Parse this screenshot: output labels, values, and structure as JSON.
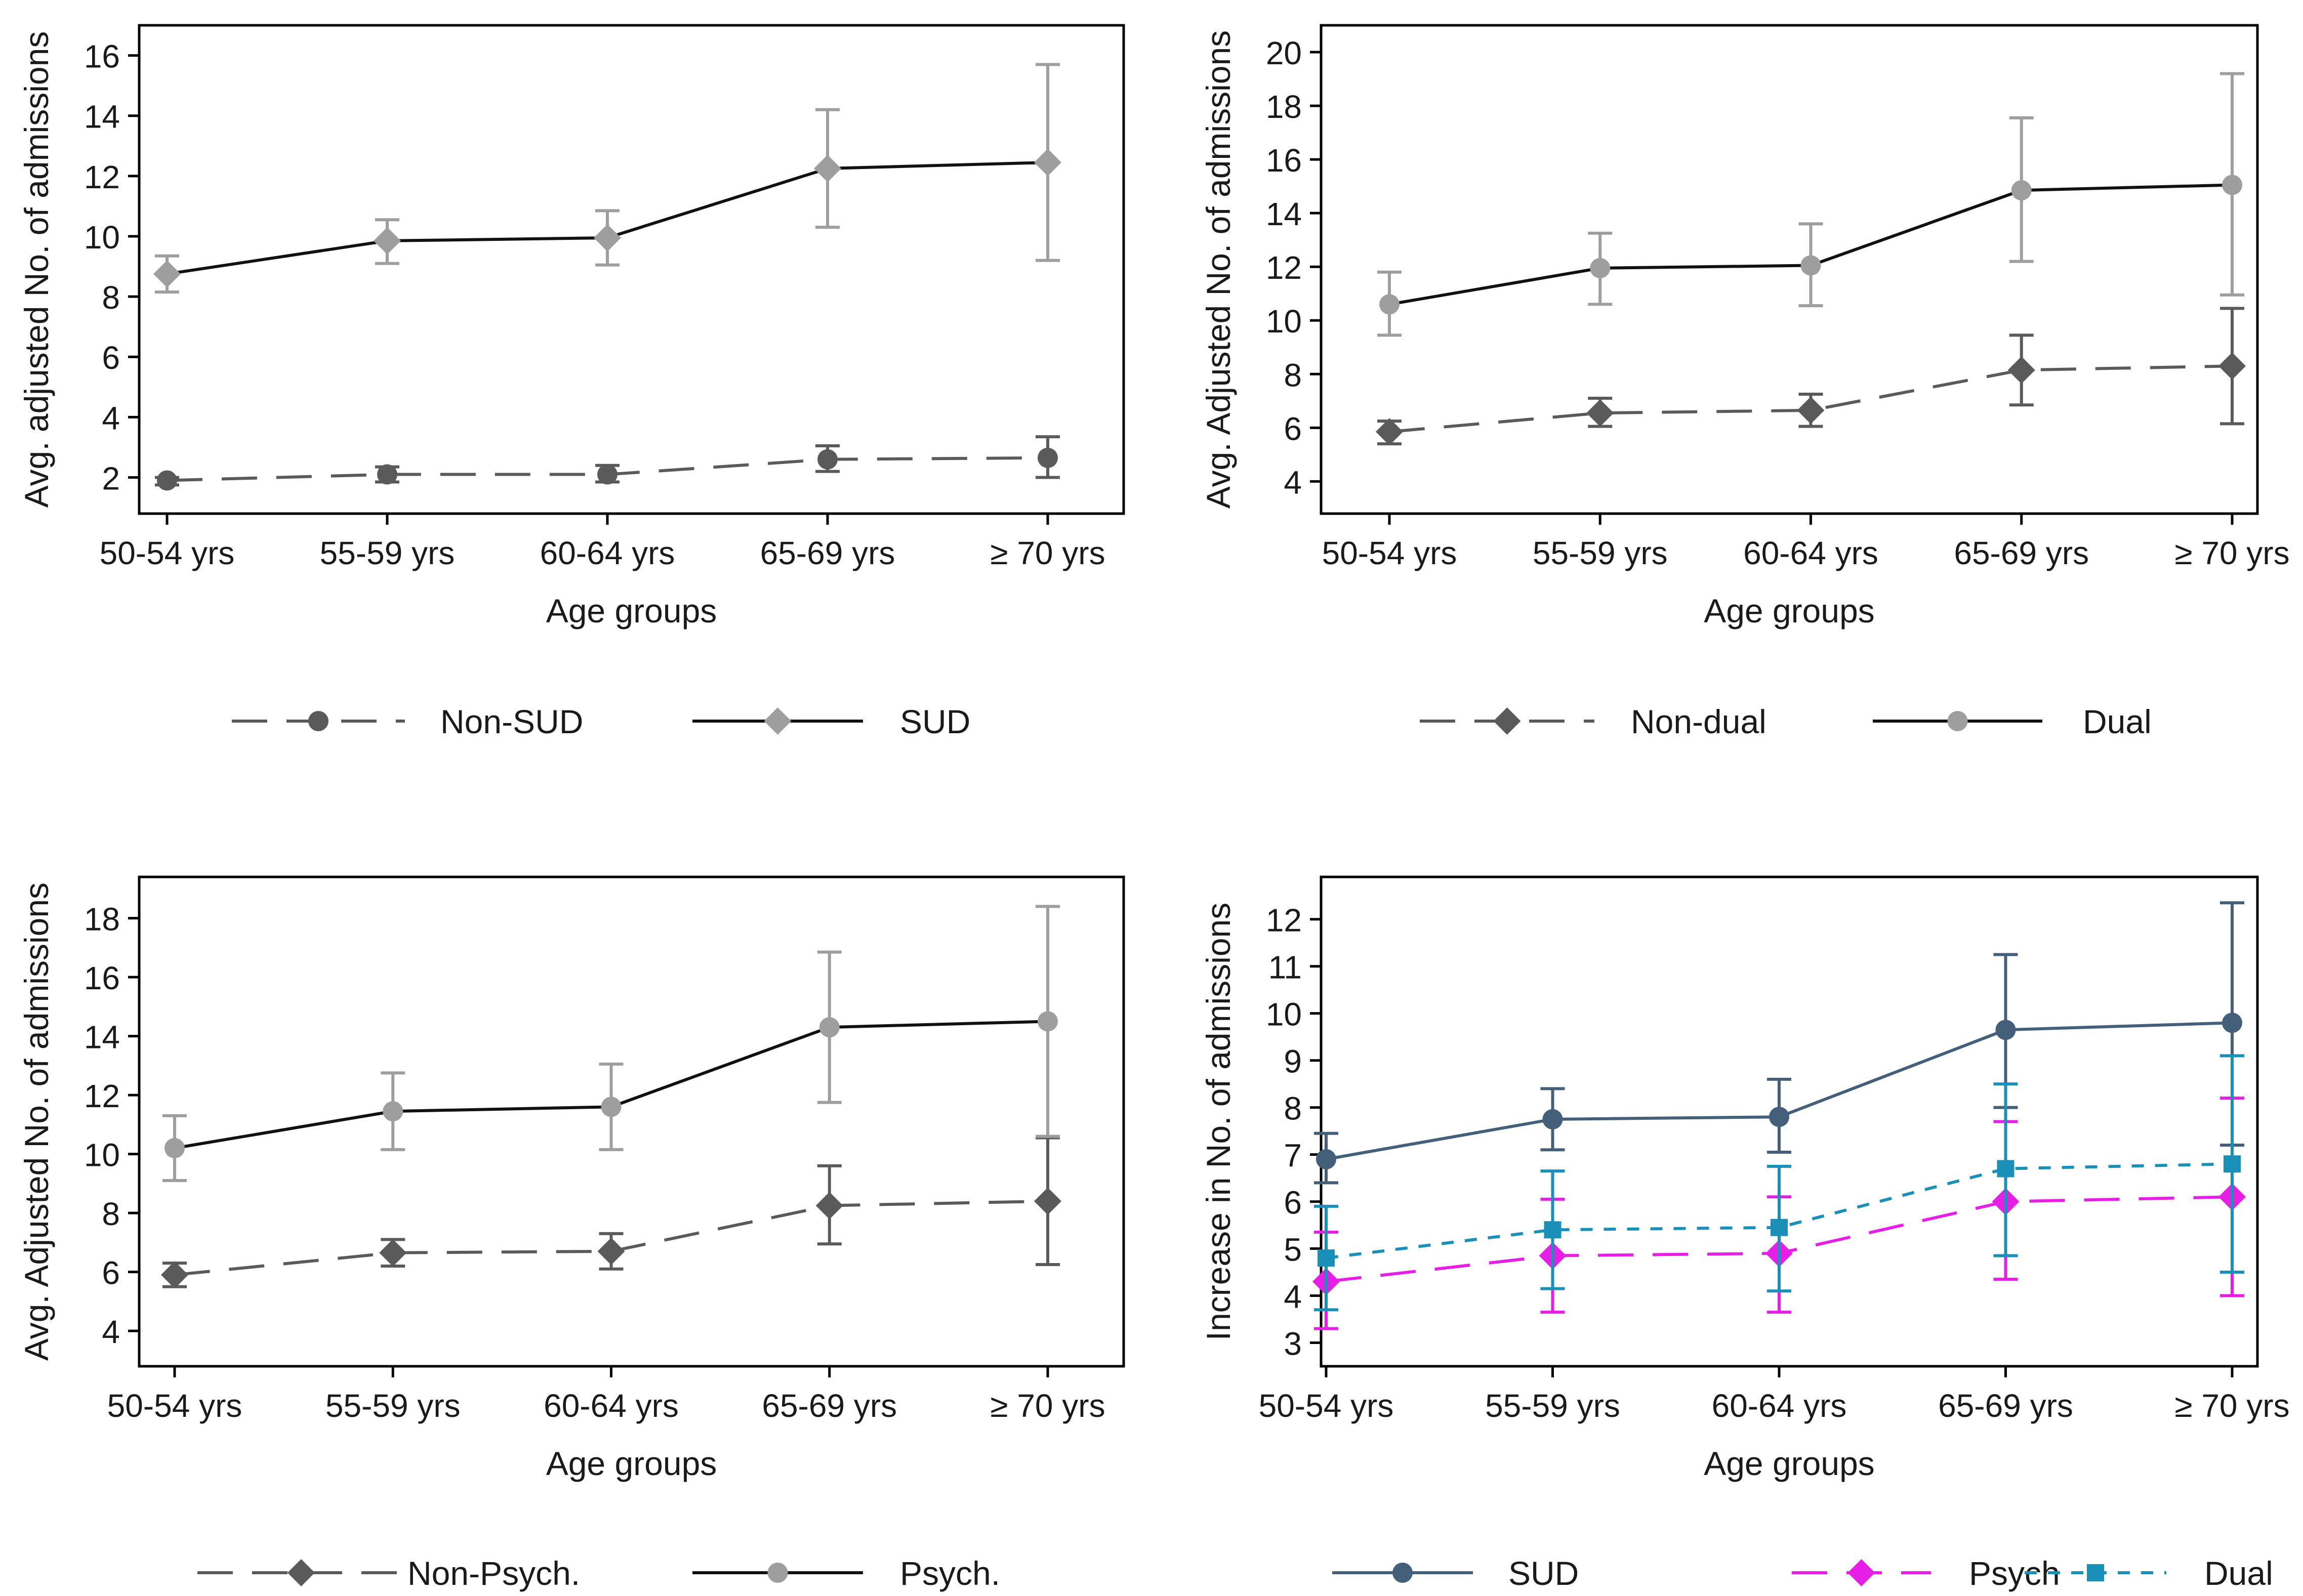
{
  "chart_data": [
    {
      "id": "p1",
      "type": "line",
      "xlabel": "Age groups",
      "ylabel": "Avg. adjusted No. of admissions",
      "categories": [
        "50-54 yrs",
        "55-59 yrs",
        "60-64 yrs",
        "65-69 yrs",
        "≥ 70 yrs"
      ],
      "ylim": [
        0.8,
        17
      ],
      "yticks": [
        2,
        4,
        6,
        8,
        10,
        12,
        14,
        16
      ],
      "series": [
        {
          "name": "Non-SUD",
          "color": "#5a5a5a",
          "dash": "long",
          "marker": "circle",
          "values": [
            1.9,
            2.1,
            2.1,
            2.6,
            2.65
          ],
          "lower": [
            1.75,
            1.85,
            1.85,
            2.2,
            2.0
          ],
          "upper": [
            2.0,
            2.35,
            2.4,
            3.05,
            3.35
          ]
        },
        {
          "name": "SUD",
          "color": "#9e9e9e",
          "line_color": "#111111",
          "dash": "solid",
          "marker": "diamond",
          "values": [
            8.75,
            9.85,
            9.95,
            12.25,
            12.45
          ],
          "lower": [
            8.15,
            9.1,
            9.05,
            10.3,
            9.2
          ],
          "upper": [
            9.35,
            10.55,
            10.85,
            14.2,
            15.7
          ]
        }
      ]
    },
    {
      "id": "p2",
      "type": "line",
      "xlabel": "Age groups",
      "ylabel": "Avg. Adjusted No. of admissions",
      "categories": [
        "50-54 yrs",
        "55-59 yrs",
        "60-64 yrs",
        "65-69 yrs",
        "≥ 70 yrs"
      ],
      "ylim": [
        2.8,
        21
      ],
      "yticks": [
        4,
        6,
        8,
        10,
        12,
        14,
        16,
        18,
        20
      ],
      "series": [
        {
          "name": "Non-dual",
          "color": "#5a5a5a",
          "dash": "long",
          "marker": "diamond",
          "values": [
            5.85,
            6.55,
            6.65,
            8.15,
            8.3
          ],
          "lower": [
            5.4,
            6.05,
            6.05,
            6.85,
            6.15
          ],
          "upper": [
            6.25,
            7.1,
            7.25,
            9.45,
            10.45
          ]
        },
        {
          "name": "Dual",
          "color": "#9e9e9e",
          "line_color": "#111111",
          "dash": "solid",
          "marker": "circle",
          "values": [
            10.6,
            11.95,
            12.05,
            14.85,
            15.05
          ],
          "lower": [
            9.45,
            10.6,
            10.55,
            12.2,
            10.95
          ],
          "upper": [
            11.8,
            13.25,
            13.6,
            17.55,
            19.2
          ]
        }
      ]
    },
    {
      "id": "p3",
      "type": "line",
      "xlabel": "Age groups",
      "ylabel": "Avg. Adjusted No. of admissions",
      "categories": [
        "50-54 yrs",
        "55-59 yrs",
        "60-64 yrs",
        "65-69 yrs",
        "≥ 70 yrs"
      ],
      "ylim": [
        2.8,
        19.4
      ],
      "yticks": [
        4,
        6,
        8,
        10,
        12,
        14,
        16,
        18
      ],
      "series": [
        {
          "name": "Non-Psych.",
          "color": "#5a5a5a",
          "dash": "long",
          "marker": "diamond",
          "values": [
            5.9,
            6.65,
            6.7,
            8.25,
            8.4
          ],
          "lower": [
            5.5,
            6.2,
            6.1,
            6.95,
            6.25
          ],
          "upper": [
            6.3,
            7.1,
            7.3,
            9.6,
            10.55
          ]
        },
        {
          "name": "Psych.",
          "color": "#9e9e9e",
          "line_color": "#111111",
          "dash": "solid",
          "marker": "circle",
          "values": [
            10.2,
            11.45,
            11.6,
            14.3,
            14.5
          ],
          "lower": [
            9.1,
            10.15,
            10.15,
            11.75,
            10.6
          ],
          "upper": [
            11.3,
            12.75,
            13.05,
            16.85,
            18.4
          ]
        }
      ]
    },
    {
      "id": "p4",
      "type": "line",
      "xlabel": "Age groups",
      "ylabel": "Increase in No. of admissions",
      "categories": [
        "50-54 yrs",
        "55-59 yrs",
        "60-64 yrs",
        "65-69 yrs",
        "≥ 70 yrs"
      ],
      "ylim": [
        2.5,
        12.9
      ],
      "yticks": [
        3,
        4,
        5,
        6,
        7,
        8,
        9,
        10,
        11,
        12
      ],
      "series": [
        {
          "name": "SUD",
          "color": "#445f7a",
          "dash": "solid",
          "marker": "circle",
          "values": [
            6.9,
            7.75,
            7.8,
            9.65,
            9.8
          ],
          "lower": [
            6.4,
            7.1,
            7.05,
            8.0,
            7.2
          ],
          "upper": [
            7.45,
            8.4,
            8.6,
            11.25,
            12.35
          ]
        },
        {
          "name": "Psych",
          "color": "#e61ee6",
          "dash": "long",
          "marker": "diamond",
          "values": [
            4.3,
            4.85,
            4.9,
            6.0,
            6.1
          ],
          "lower": [
            3.3,
            3.65,
            3.65,
            4.35,
            4.0
          ],
          "upper": [
            5.35,
            6.05,
            6.1,
            7.7,
            8.2
          ]
        },
        {
          "name": "Dual",
          "color": "#1a8fb8",
          "dash": "short",
          "marker": "square",
          "values": [
            4.8,
            5.4,
            5.45,
            6.7,
            6.8
          ],
          "lower": [
            3.7,
            4.15,
            4.1,
            4.85,
            4.5
          ],
          "upper": [
            5.9,
            6.65,
            6.75,
            8.5,
            9.1
          ]
        }
      ]
    }
  ]
}
